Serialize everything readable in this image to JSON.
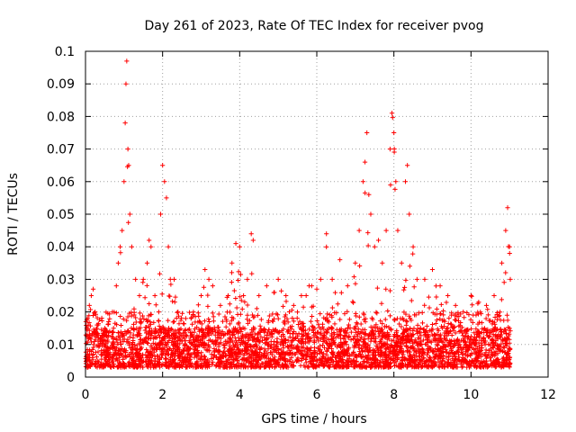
{
  "chart_data": {
    "type": "scatter",
    "title": "Day 261 of 2023, Rate Of TEC Index for receiver pvog",
    "xlabel": "GPS time / hours",
    "ylabel": "ROTI / TECUs",
    "xlim": [
      0,
      12
    ],
    "ylim": [
      0,
      0.1
    ],
    "x_ticks": [
      "0",
      "2",
      "4",
      "6",
      "8",
      "10",
      "12"
    ],
    "y_ticks": [
      "0",
      "0.01",
      "0.02",
      "0.03",
      "0.04",
      "0.05",
      "0.06",
      "0.07",
      "0.08",
      "0.09",
      "0.1"
    ],
    "grid": true,
    "marker": "+",
    "color": "#ff0000",
    "series": [
      {
        "name": "ROTI",
        "note": "dense cloud of ~4000 samples between 0 and 11 h, mostly 0.004-0.02 TECU; listed points are representative samples and spikes",
        "points": [
          [
            0.05,
            0.018
          ],
          [
            0.1,
            0.022
          ],
          [
            0.15,
            0.025
          ],
          [
            0.2,
            0.027
          ],
          [
            0.25,
            0.02
          ],
          [
            0.3,
            0.016
          ],
          [
            0.4,
            0.012
          ],
          [
            0.5,
            0.015
          ],
          [
            0.6,
            0.017
          ],
          [
            0.7,
            0.02
          ],
          [
            0.8,
            0.028
          ],
          [
            0.85,
            0.035
          ],
          [
            0.9,
            0.04
          ],
          [
            0.95,
            0.045
          ],
          [
            1.0,
            0.06
          ],
          [
            1.03,
            0.078
          ],
          [
            1.05,
            0.09
          ],
          [
            1.07,
            0.097
          ],
          [
            1.1,
            0.07
          ],
          [
            1.12,
            0.065
          ],
          [
            1.15,
            0.05
          ],
          [
            1.2,
            0.04
          ],
          [
            1.3,
            0.03
          ],
          [
            1.4,
            0.025
          ],
          [
            1.5,
            0.03
          ],
          [
            1.6,
            0.035
          ],
          [
            1.65,
            0.042
          ],
          [
            1.7,
            0.04
          ],
          [
            1.8,
            0.025
          ],
          [
            1.9,
            0.02
          ],
          [
            1.95,
            0.05
          ],
          [
            2.0,
            0.065
          ],
          [
            2.05,
            0.06
          ],
          [
            2.1,
            0.055
          ],
          [
            2.15,
            0.04
          ],
          [
            2.2,
            0.03
          ],
          [
            2.3,
            0.03
          ],
          [
            2.4,
            0.02
          ],
          [
            2.6,
            0.018
          ],
          [
            2.8,
            0.02
          ],
          [
            3.0,
            0.025
          ],
          [
            3.1,
            0.033
          ],
          [
            3.2,
            0.03
          ],
          [
            3.3,
            0.028
          ],
          [
            3.5,
            0.022
          ],
          [
            3.7,
            0.025
          ],
          [
            3.8,
            0.035
          ],
          [
            3.9,
            0.041
          ],
          [
            4.0,
            0.04
          ],
          [
            4.1,
            0.025
          ],
          [
            4.2,
            0.03
          ],
          [
            4.3,
            0.044
          ],
          [
            4.35,
            0.042
          ],
          [
            4.5,
            0.025
          ],
          [
            4.7,
            0.028
          ],
          [
            4.9,
            0.026
          ],
          [
            5.0,
            0.03
          ],
          [
            5.2,
            0.025
          ],
          [
            5.4,
            0.022
          ],
          [
            5.6,
            0.025
          ],
          [
            5.8,
            0.028
          ],
          [
            6.0,
            0.027
          ],
          [
            6.1,
            0.03
          ],
          [
            6.25,
            0.044
          ],
          [
            6.4,
            0.03
          ],
          [
            6.6,
            0.036
          ],
          [
            6.8,
            0.028
          ],
          [
            7.0,
            0.035
          ],
          [
            7.1,
            0.045
          ],
          [
            7.2,
            0.06
          ],
          [
            7.25,
            0.066
          ],
          [
            7.3,
            0.075
          ],
          [
            7.35,
            0.056
          ],
          [
            7.4,
            0.05
          ],
          [
            7.5,
            0.04
          ],
          [
            7.6,
            0.042
          ],
          [
            7.7,
            0.035
          ],
          [
            7.8,
            0.045
          ],
          [
            7.9,
            0.07
          ],
          [
            7.95,
            0.081
          ],
          [
            8.0,
            0.075
          ],
          [
            8.05,
            0.06
          ],
          [
            8.1,
            0.045
          ],
          [
            8.2,
            0.035
          ],
          [
            8.3,
            0.06
          ],
          [
            8.35,
            0.065
          ],
          [
            8.4,
            0.05
          ],
          [
            8.5,
            0.04
          ],
          [
            8.6,
            0.03
          ],
          [
            8.8,
            0.03
          ],
          [
            9.0,
            0.033
          ],
          [
            9.2,
            0.028
          ],
          [
            9.4,
            0.025
          ],
          [
            9.6,
            0.022
          ],
          [
            9.8,
            0.02
          ],
          [
            10.0,
            0.025
          ],
          [
            10.2,
            0.023
          ],
          [
            10.4,
            0.022
          ],
          [
            10.6,
            0.025
          ],
          [
            10.8,
            0.035
          ],
          [
            10.9,
            0.045
          ],
          [
            10.95,
            0.052
          ],
          [
            11.0,
            0.04
          ],
          [
            11.02,
            0.03
          ]
        ]
      }
    ]
  }
}
